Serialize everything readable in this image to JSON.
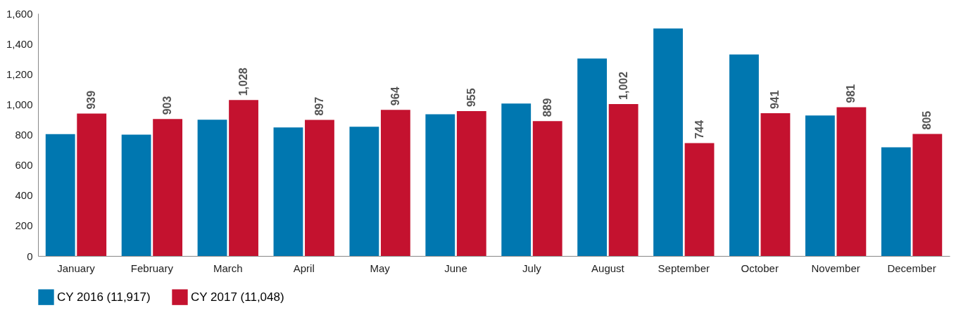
{
  "chart_data": {
    "type": "bar",
    "categories": [
      "January",
      "February",
      "March",
      "April",
      "May",
      "June",
      "July",
      "August",
      "September",
      "October",
      "November",
      "December"
    ],
    "series": [
      {
        "name": "CY 2016 (11,917)",
        "color": "#0077b0",
        "values": [
          804,
          800,
          898,
          847,
          852,
          935,
          1005,
          1302,
          1500,
          1329,
          926,
          717
        ]
      },
      {
        "name": "CY 2017 (11,048)",
        "color": "#c4122f",
        "values": [
          939,
          903,
          1028,
          897,
          964,
          955,
          889,
          1002,
          744,
          941,
          981,
          805
        ],
        "value_labels": [
          "939",
          "903",
          "1,028",
          "897",
          "964",
          "955",
          "889",
          "1,002",
          "744",
          "941",
          "981",
          "805"
        ]
      }
    ],
    "ylim": [
      0,
      1600
    ],
    "yticks": [
      0,
      200,
      400,
      600,
      800,
      {
        "value": 1000,
        "label": "1,000"
      },
      {
        "value": 1200,
        "label": "1,200"
      },
      {
        "value": 1400,
        "label": "1,400"
      },
      {
        "value": 1600,
        "label": "1,600"
      }
    ],
    "grid": false,
    "legend": "bottom"
  }
}
